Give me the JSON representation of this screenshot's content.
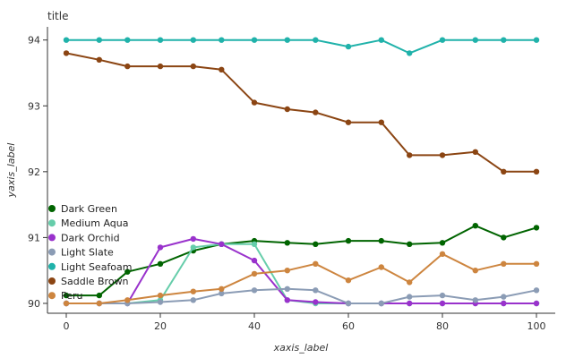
{
  "chart_data": {
    "type": "line",
    "title": "title",
    "xlabel": "xaxis_label",
    "ylabel": "yaxis_label",
    "xlim": [
      -4,
      104
    ],
    "ylim": [
      89.85,
      94.2
    ],
    "xticks": [
      0,
      20,
      40,
      60,
      80,
      100
    ],
    "yticks": [
      90,
      91,
      92,
      93,
      94
    ],
    "grid": false,
    "legend_position": "left",
    "x": [
      0,
      7,
      13,
      20,
      27,
      33,
      40,
      47,
      53,
      60,
      67,
      73,
      80,
      87,
      93,
      100
    ],
    "series": [
      {
        "name": "Dark Green",
        "color": "#006400",
        "values": [
          90.12,
          90.12,
          90.48,
          90.6,
          90.8,
          90.9,
          90.95,
          90.92,
          90.9,
          90.95,
          90.95,
          90.9,
          90.92,
          91.18,
          91.0,
          91.15
        ]
      },
      {
        "name": "Medium Aqua",
        "color": "#66cdaa",
        "values": [
          90.0,
          90.0,
          90.0,
          90.05,
          90.85,
          90.9,
          90.9,
          90.05,
          90.0,
          90.0,
          90.0,
          90.0,
          90.0,
          90.0,
          90.0,
          90.0
        ]
      },
      {
        "name": "Dark Orchid",
        "color": "#9932cc",
        "values": [
          90.0,
          90.0,
          90.0,
          90.85,
          90.98,
          90.9,
          90.65,
          90.05,
          90.02,
          90.0,
          90.0,
          90.0,
          90.0,
          90.0,
          90.0,
          90.0
        ]
      },
      {
        "name": "Light Slate",
        "color": "#8b9cb5",
        "values": [
          90.0,
          90.0,
          90.0,
          90.02,
          90.05,
          90.15,
          90.2,
          90.22,
          90.2,
          90.0,
          90.0,
          90.1,
          90.12,
          90.05,
          90.1,
          90.2
        ]
      },
      {
        "name": "Light Seafoam",
        "color": "#20b2aa",
        "values": [
          94.0,
          94.0,
          94.0,
          94.0,
          94.0,
          94.0,
          94.0,
          94.0,
          94.0,
          93.9,
          94.0,
          93.8,
          94.0,
          94.0,
          94.0,
          94.0
        ]
      },
      {
        "name": "Saddle Brown",
        "color": "#8b4513",
        "values": [
          93.8,
          93.7,
          93.6,
          93.6,
          93.6,
          93.55,
          93.05,
          92.95,
          92.9,
          92.75,
          92.75,
          92.25,
          92.25,
          92.3,
          92.0,
          92.0
        ]
      },
      {
        "name": "Peru",
        "color": "#cd853f",
        "values": [
          90.0,
          90.0,
          90.05,
          90.12,
          90.18,
          90.22,
          90.45,
          90.5,
          90.6,
          90.35,
          90.55,
          90.32,
          90.75,
          90.5,
          90.6,
          90.6
        ]
      }
    ]
  }
}
